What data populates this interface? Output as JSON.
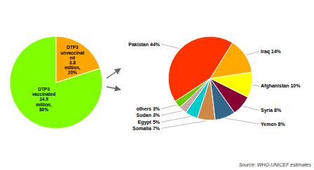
{
  "chart_data": [
    {
      "type": "pie",
      "categories": [
        "DTP3\nvaccinated\n14.9\nmillion,\n80%",
        "DTP3\nunvaccinat\ned\n3.8\nmillion,\n20%"
      ],
      "values": [
        80,
        20
      ],
      "colors": [
        "#7FFF00",
        "#FFA500"
      ]
    },
    {
      "type": "pie",
      "categories": [
        "Pakistan",
        "others",
        "Sudan",
        "Egypt",
        "Somalia",
        "Yemen",
        "Syria",
        "Afghanistan",
        "Iraq"
      ],
      "values": [
        44,
        3,
        3,
        5,
        7,
        8,
        8,
        10,
        14
      ],
      "value_labels": [
        "44%",
        "3%",
        "3%",
        "5%",
        "7%",
        "8%",
        "8%",
        "10%",
        "14%"
      ],
      "data_labels": true,
      "colors": [
        "#FF3300",
        "#66CC00",
        "#C8A8A8",
        "#00CCCC",
        "#CC8844",
        "#336688",
        "#880033",
        "#FFFF00",
        "#FFAA00"
      ],
      "annotations": [
        "Source: WHO-UNICEF estimates"
      ]
    }
  ]
}
